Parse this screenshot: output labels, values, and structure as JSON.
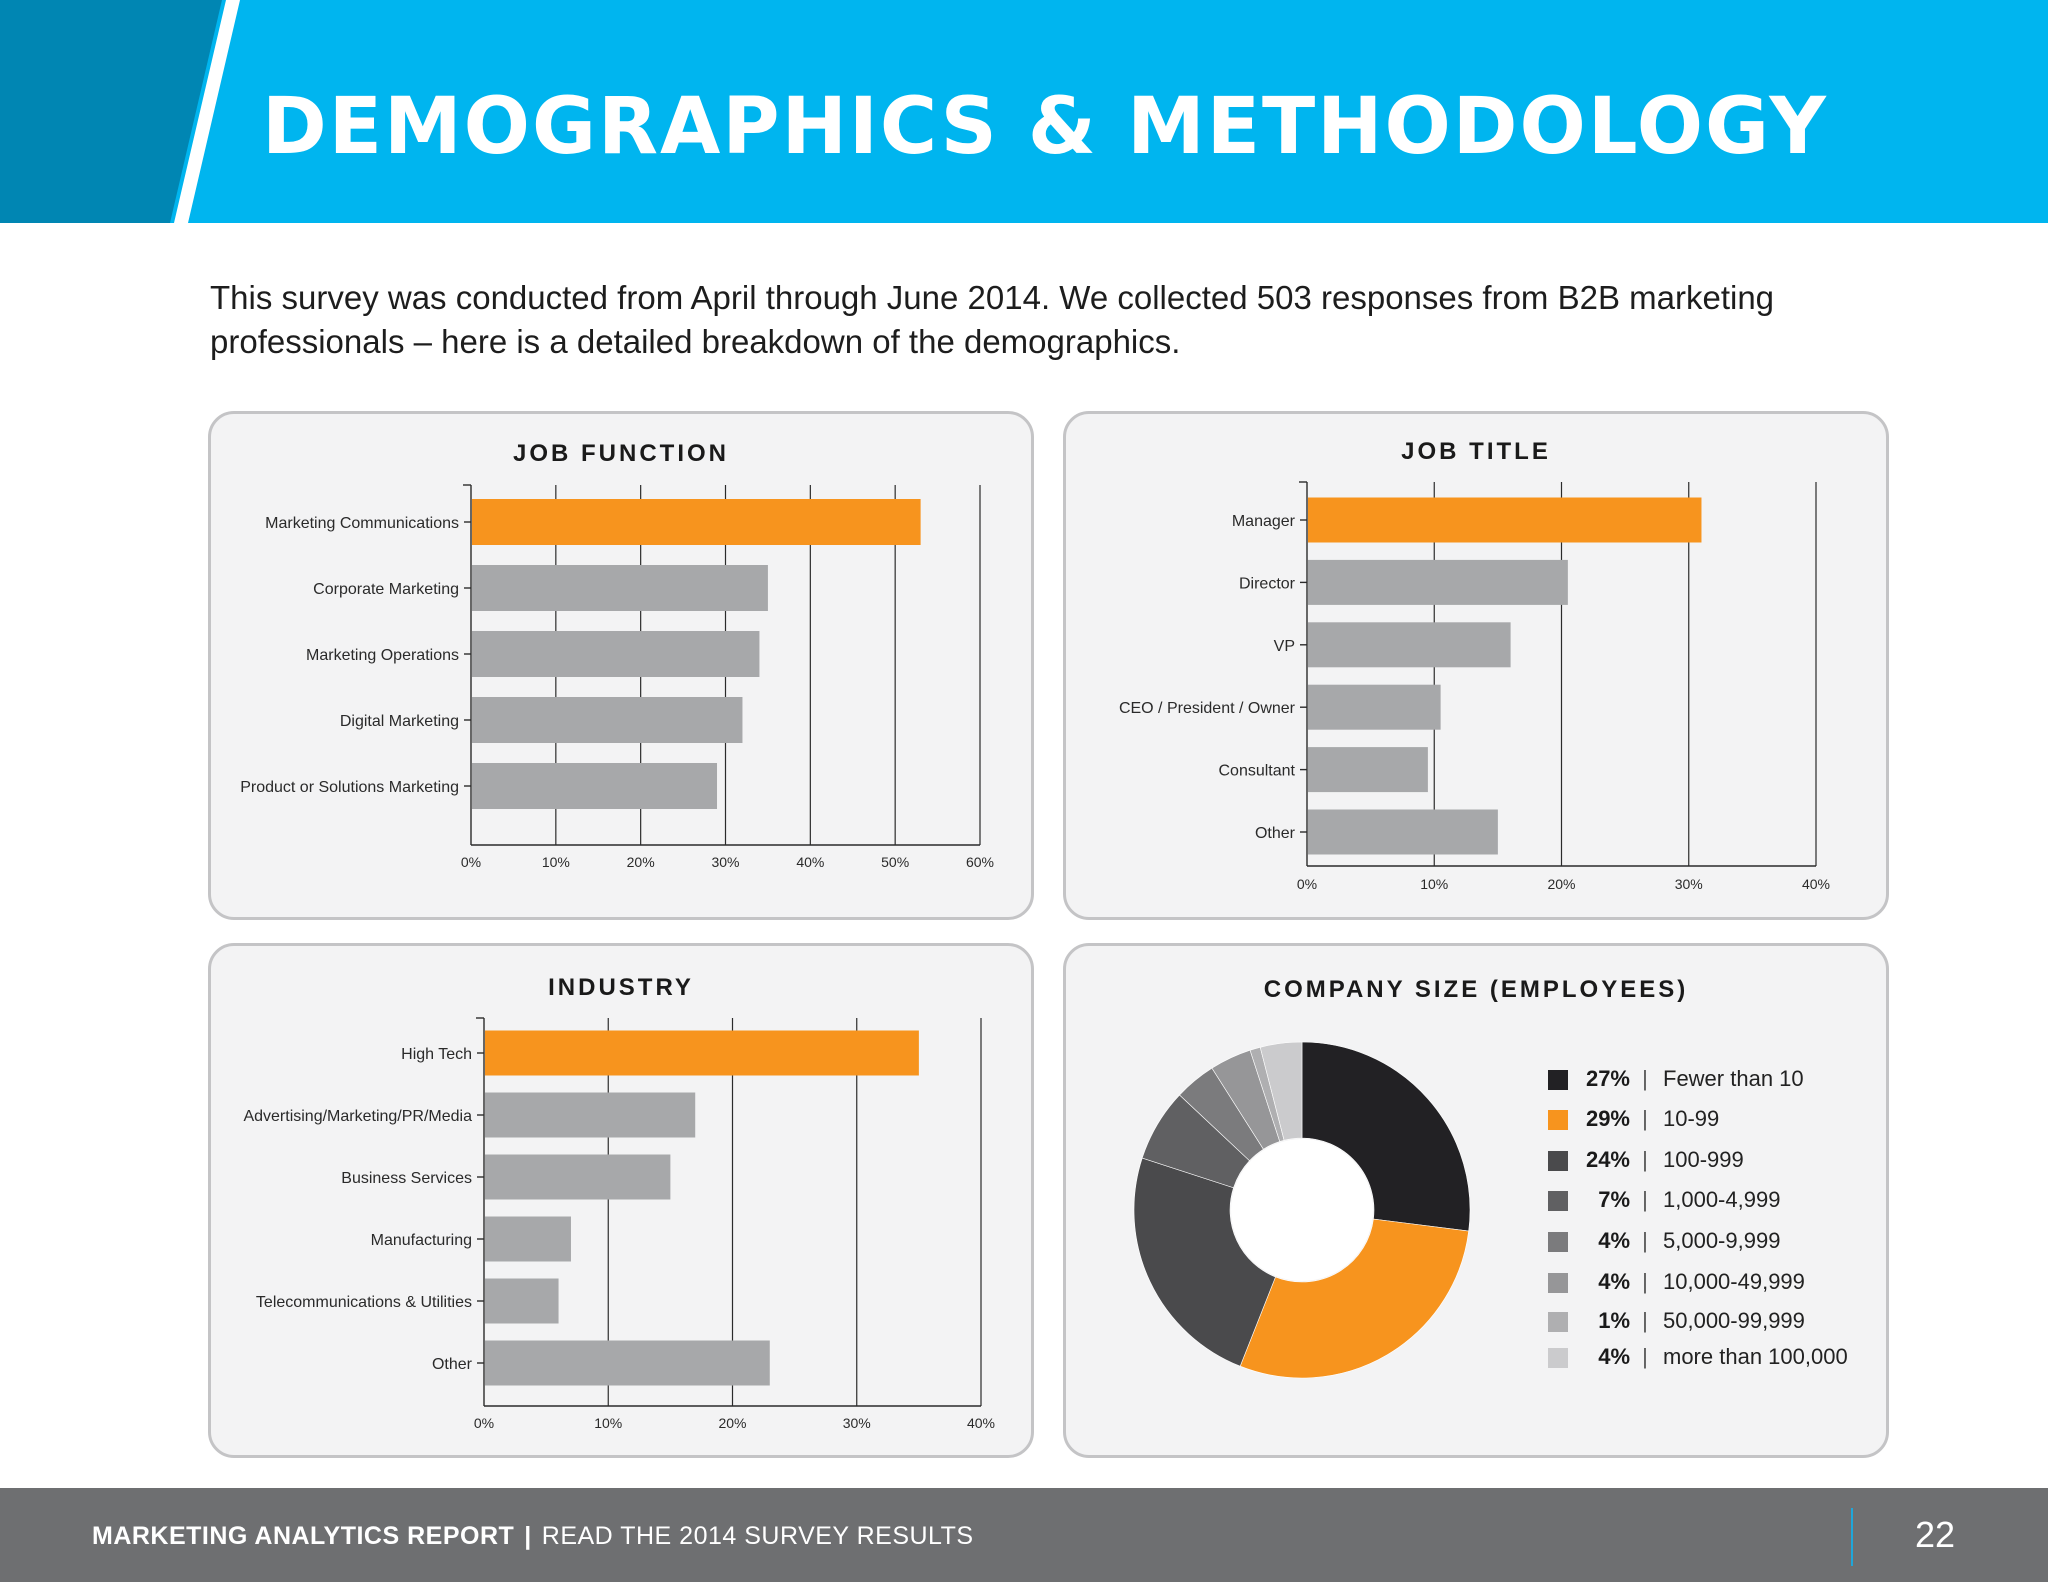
{
  "header": {
    "title": "DEMOGRAPHICS & METHODOLOGY",
    "colors": {
      "dark_blue": "#0086b3",
      "light_blue": "#00b5ef"
    }
  },
  "intro": {
    "text": "This survey was conducted from April through June 2014. We collected 503 responses from B2B marketing professionals – here is a detailed breakdown of the demographics."
  },
  "chart_data": [
    {
      "type": "bar",
      "orientation": "horizontal",
      "title": "JOB FUNCTION",
      "categories": [
        "Marketing Communications",
        "Corporate Marketing",
        "Marketing Operations",
        "Digital Marketing",
        "Product or Solutions Marketing"
      ],
      "values": [
        53,
        35,
        34,
        32,
        29
      ],
      "highlight_index": 0,
      "xlim": [
        0,
        60
      ],
      "xticks": [
        "0%",
        "10%",
        "20%",
        "30%",
        "40%",
        "50%",
        "60%"
      ],
      "grid": true
    },
    {
      "type": "bar",
      "orientation": "horizontal",
      "title": "JOB TITLE",
      "categories": [
        "Manager",
        "Director",
        "VP",
        "CEO / President / Owner",
        "Consultant",
        "Other"
      ],
      "values": [
        31,
        20.5,
        16,
        10.5,
        9.5,
        15
      ],
      "highlight_index": 0,
      "xlim": [
        0,
        40
      ],
      "xticks": [
        "0%",
        "10%",
        "20%",
        "30%",
        "40%"
      ],
      "grid": true
    },
    {
      "type": "bar",
      "orientation": "horizontal",
      "title": "INDUSTRY",
      "categories": [
        "High Tech",
        "Advertising/Marketing/PR/Media",
        "Business Services",
        "Manufacturing",
        "Telecommunications & Utilities",
        "Other"
      ],
      "values": [
        35,
        17,
        15,
        7,
        6,
        23
      ],
      "highlight_index": 0,
      "xlim": [
        0,
        40
      ],
      "xticks": [
        "0%",
        "10%",
        "20%",
        "30%",
        "40%"
      ],
      "grid": true
    },
    {
      "type": "pie",
      "donut": true,
      "title": "COMPANY SIZE (EMPLOYEES)",
      "legend_position": "right",
      "slices": [
        {
          "pct_label": "27%",
          "value": 27,
          "label": "Fewer than 10",
          "color": "#222124"
        },
        {
          "pct_label": "29%",
          "value": 29,
          "label": "10-99",
          "color": "#f7941e"
        },
        {
          "pct_label": "24%",
          "value": 24,
          "label": "100-999",
          "color": "#4a4a4c"
        },
        {
          "pct_label": "7%",
          "value": 7,
          "label": "1,000-4,999",
          "color": "#606062"
        },
        {
          "pct_label": "4%",
          "value": 4,
          "label": "5,000-9,999",
          "color": "#7b7b7d"
        },
        {
          "pct_label": "4%",
          "value": 4,
          "label": "10,000-49,999",
          "color": "#969698"
        },
        {
          "pct_label": "1%",
          "value": 1,
          "label": "50,000-99,999",
          "color": "#afafb1"
        },
        {
          "pct_label": "4%",
          "value": 4,
          "label": "more than 100,000",
          "color": "#cbcbcd"
        }
      ]
    }
  ],
  "colors": {
    "highlight_bar": "#f7941e",
    "bar": "#a7a8aa"
  },
  "footer": {
    "report_name": "MARKETING ANALYTICS REPORT",
    "separator": "|",
    "subtitle": "READ THE 2014 SURVEY RESULTS",
    "page_number": "22"
  }
}
